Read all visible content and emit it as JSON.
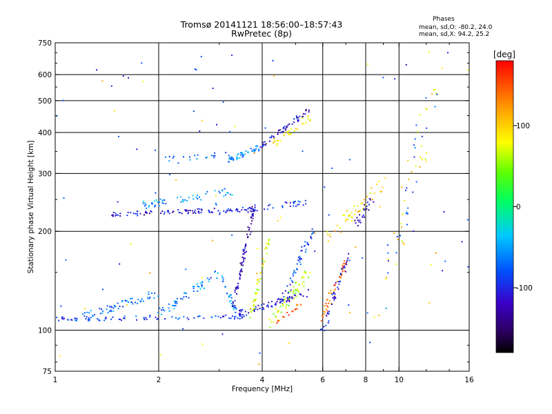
{
  "chart_data": {
    "type": "scatter",
    "title": "Tromsø 20141121 18:56:00–18:57:43",
    "subtitle": "RwPretec (8p)",
    "stats": {
      "header": "Phases",
      "line1": "mean, sd,O: -80.2, 24.0",
      "line2": "mean, sd,X:  94.2, 25.2"
    },
    "xlabel": "Frequency [MHz]",
    "ylabel": "Stationary phase Virtual Height [km]",
    "x_scale": "log",
    "y_scale": "log",
    "xlim": [
      1,
      16
    ],
    "ylim": [
      75,
      750
    ],
    "x_ticks": [
      1,
      2,
      4,
      6,
      8,
      10,
      16
    ],
    "x_tick_labels": [
      "1",
      "2",
      "4",
      "6",
      "8",
      "10",
      "16"
    ],
    "y_ticks": [
      75,
      100,
      200,
      300,
      400,
      500,
      600,
      750
    ],
    "y_tick_labels": [
      "75",
      "100",
      "200",
      "300",
      "400",
      "500",
      "600",
      "750"
    ],
    "x_gridlines": [
      2,
      4,
      6,
      8,
      10
    ],
    "y_gridlines": [
      100,
      200,
      300,
      400,
      500,
      600
    ],
    "grid": true,
    "colorbar": {
      "label": "[deg]",
      "range": [
        -180,
        180
      ],
      "ticks": [
        100,
        0,
        -100
      ],
      "tick_labels": [
        "100",
        "0",
        "-100"
      ]
    },
    "series": [
      {
        "traces": [
          {
            "x0": 1.0,
            "x1": 3.6,
            "y0": 108,
            "y1": 110,
            "phase": -90,
            "n": 90,
            "spread": 0.03
          },
          {
            "x0": 1.2,
            "x1": 2.0,
            "y0": 110,
            "y1": 130,
            "phase": -70,
            "n": 60,
            "spread": 0.06
          },
          {
            "x0": 2.0,
            "x1": 3.0,
            "y0": 112,
            "y1": 150,
            "phase": -60,
            "n": 55,
            "spread": 0.07
          },
          {
            "x0": 3.0,
            "x1": 3.4,
            "y0": 150,
            "y1": 110,
            "phase": -55,
            "n": 30,
            "spread": 0.05
          },
          {
            "x0": 3.4,
            "x1": 5.5,
            "y0": 112,
            "y1": 130,
            "phase": -110,
            "n": 70,
            "spread": 0.05
          },
          {
            "x0": 3.3,
            "x1": 3.8,
            "y0": 120,
            "y1": 240,
            "phase": -125,
            "n": 80,
            "spread": 0.05
          },
          {
            "x0": 3.7,
            "x1": 4.2,
            "y0": 110,
            "y1": 190,
            "phase": 70,
            "n": 45,
            "spread": 0.06
          },
          {
            "x0": 4.2,
            "x1": 5.5,
            "y0": 105,
            "y1": 150,
            "phase": 60,
            "n": 55,
            "spread": 0.08
          },
          {
            "x0": 4.6,
            "x1": 5.6,
            "y0": 125,
            "y1": 200,
            "phase": -90,
            "n": 45,
            "spread": 0.08
          },
          {
            "x0": 4.4,
            "x1": 5.2,
            "y0": 105,
            "y1": 120,
            "phase": 140,
            "n": 20,
            "spread": 0.04
          },
          {
            "x0": 6.0,
            "x1": 7.0,
            "y0": 110,
            "y1": 160,
            "phase": 140,
            "n": 45,
            "spread": 0.08
          },
          {
            "x0": 6.0,
            "x1": 7.2,
            "y0": 100,
            "y1": 170,
            "phase": -100,
            "n": 40,
            "spread": 0.08
          },
          {
            "x0": 1.45,
            "x1": 3.0,
            "y0": 225,
            "y1": 232,
            "phase": -115,
            "n": 75,
            "spread": 0.03
          },
          {
            "x0": 1.8,
            "x1": 3.3,
            "y0": 240,
            "y1": 265,
            "phase": -55,
            "n": 55,
            "spread": 0.05
          },
          {
            "x0": 3.0,
            "x1": 5.4,
            "y0": 228,
            "y1": 245,
            "phase": -100,
            "n": 60,
            "spread": 0.04
          },
          {
            "x0": 2.0,
            "x1": 3.2,
            "y0": 330,
            "y1": 345,
            "phase": -70,
            "n": 20,
            "spread": 0.04
          },
          {
            "x0": 3.2,
            "x1": 3.9,
            "y0": 330,
            "y1": 360,
            "phase": -60,
            "n": 45,
            "spread": 0.04
          },
          {
            "x0": 3.9,
            "x1": 5.5,
            "y0": 360,
            "y1": 470,
            "phase": -120,
            "n": 55,
            "spread": 0.04
          },
          {
            "x0": 4.2,
            "x1": 5.6,
            "y0": 360,
            "y1": 450,
            "phase": 90,
            "n": 30,
            "spread": 0.06
          },
          {
            "x0": 6.2,
            "x1": 9.0,
            "y0": 190,
            "y1": 280,
            "phase": 90,
            "n": 50,
            "spread": 0.1
          },
          {
            "x0": 7.5,
            "x1": 8.5,
            "y0": 210,
            "y1": 260,
            "phase": -120,
            "n": 25,
            "spread": 0.08
          },
          {
            "x0": 9.0,
            "x1": 13.0,
            "y0": 120,
            "y1": 600,
            "phase": 90,
            "n": 35,
            "spread": 0.25
          },
          {
            "x0": 9.0,
            "x1": 12.5,
            "y0": 130,
            "y1": 560,
            "phase": -70,
            "n": 25,
            "spread": 0.25
          },
          {
            "x0": 1.0,
            "x1": 16.0,
            "y0": 78,
            "y1": 700,
            "phase": -90,
            "n": 70,
            "spread": 0.5
          },
          {
            "x0": 1.0,
            "x1": 16.0,
            "y0": 78,
            "y1": 700,
            "phase": 100,
            "n": 40,
            "spread": 0.5
          }
        ]
      }
    ]
  }
}
